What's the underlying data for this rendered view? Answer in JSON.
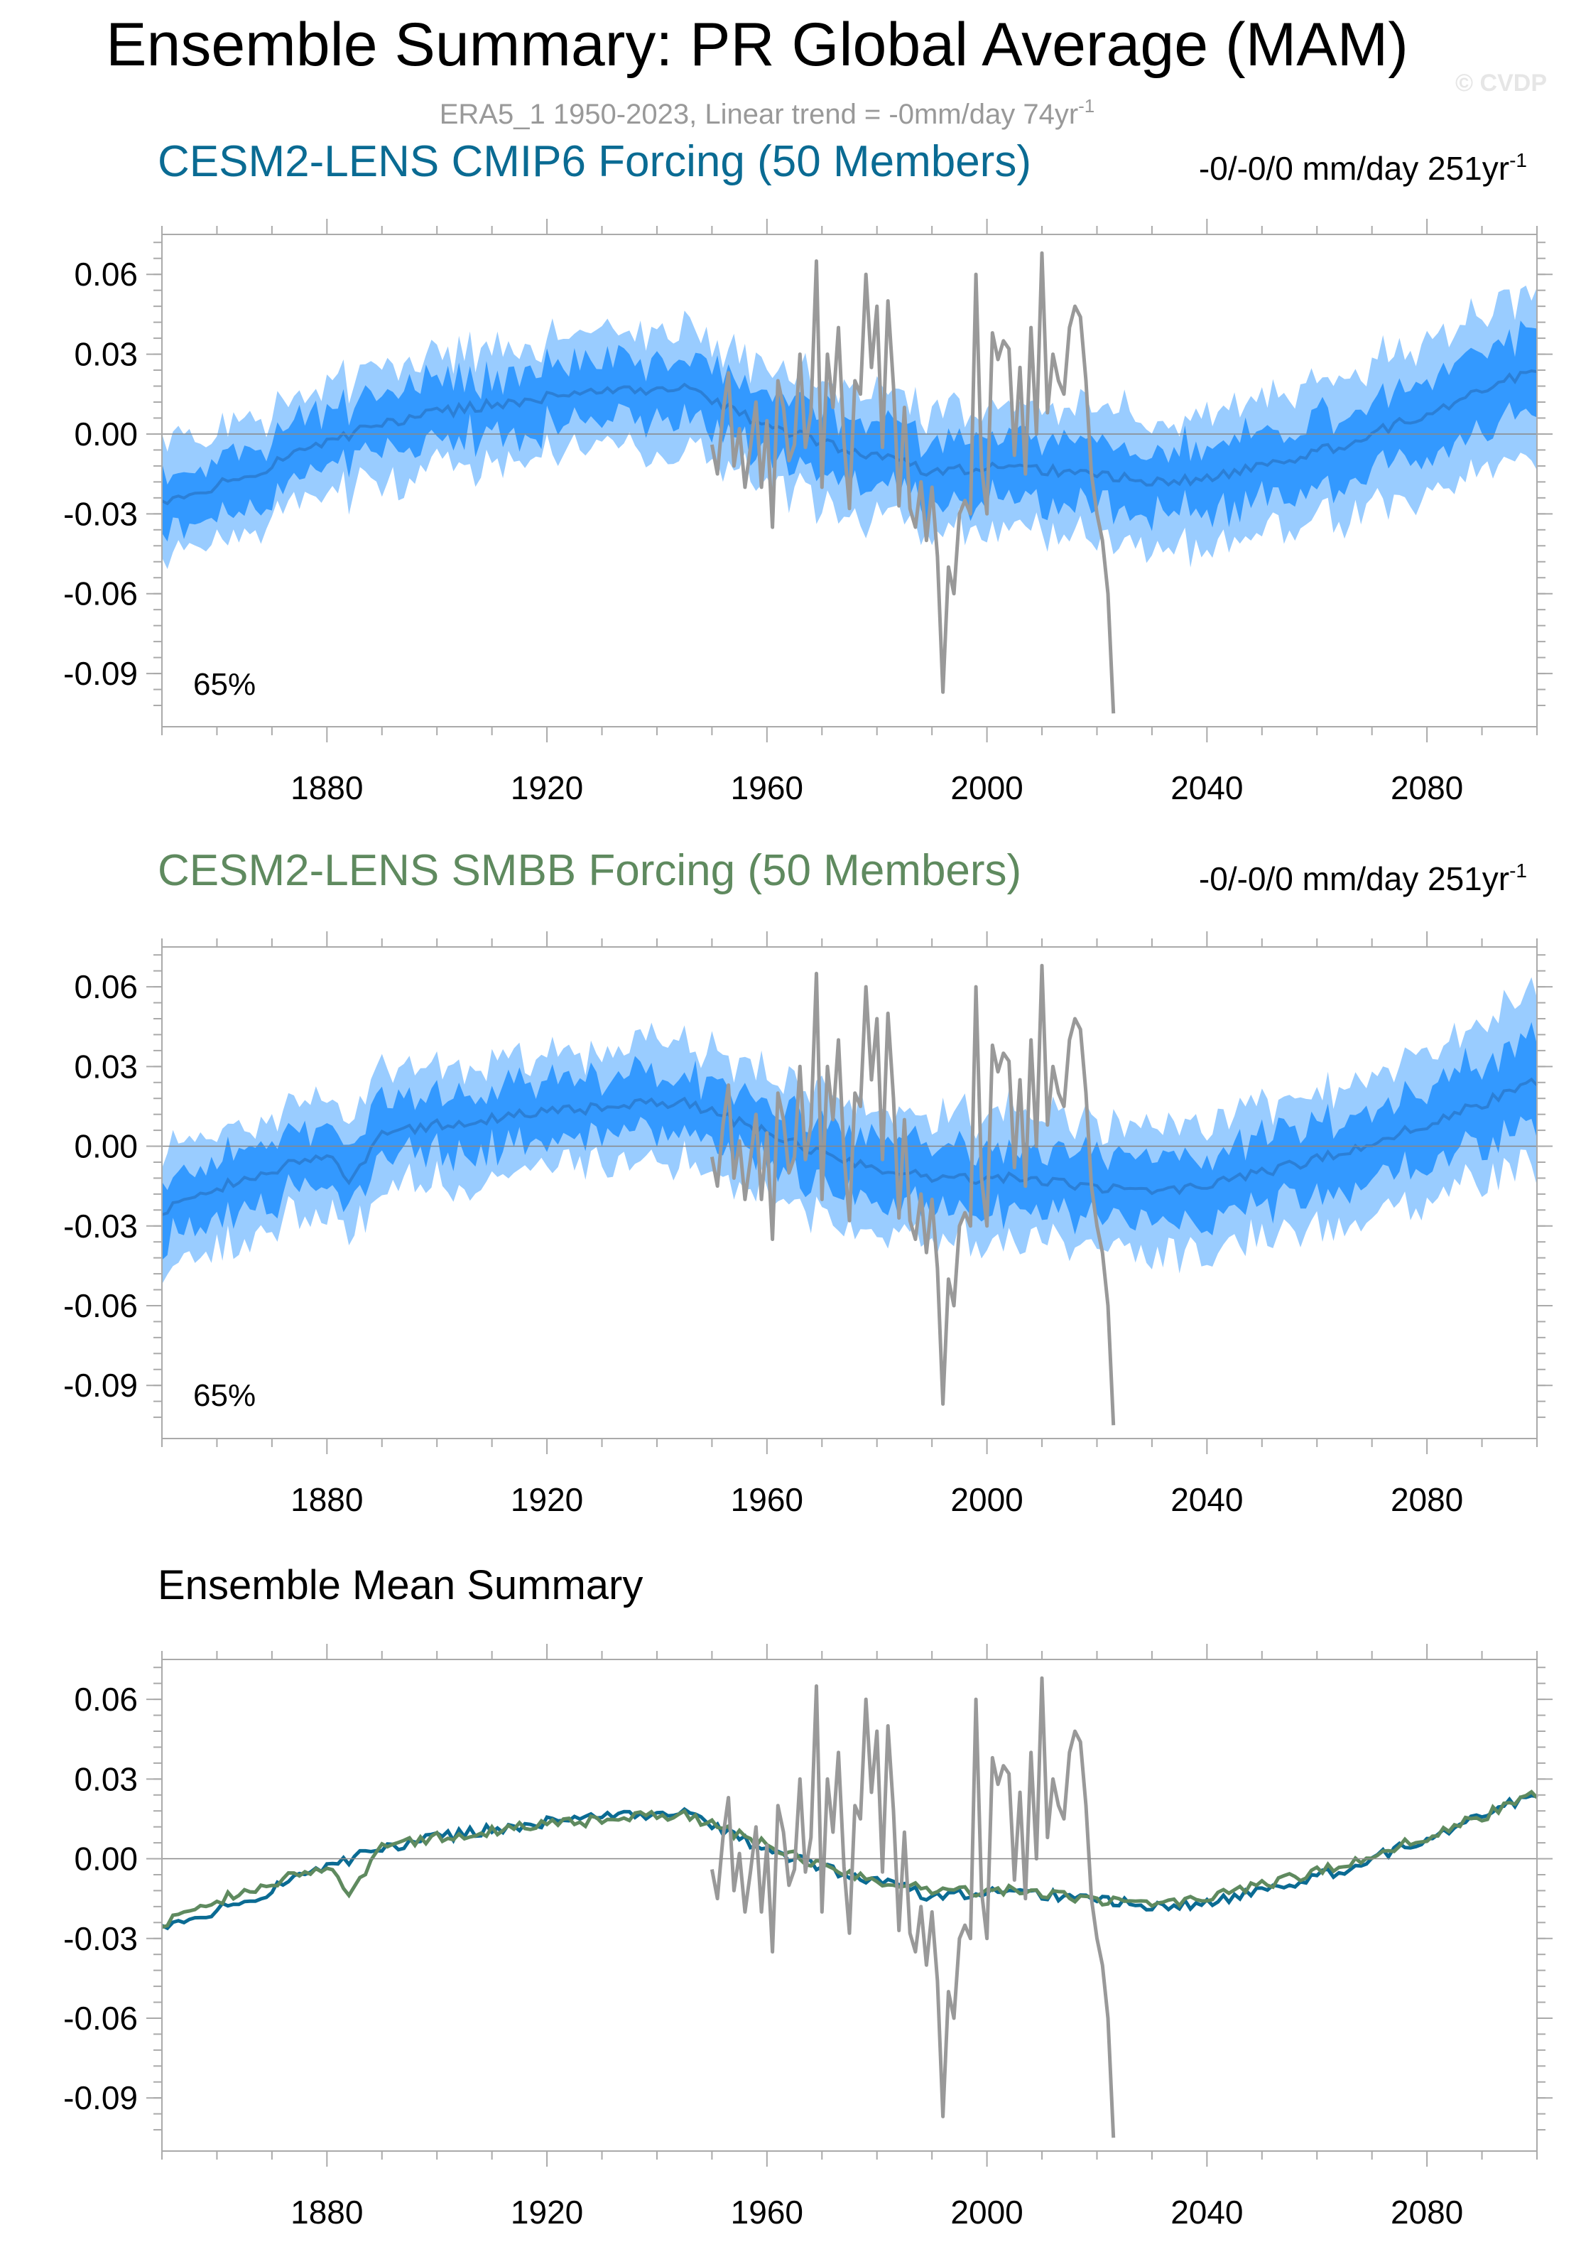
{
  "page": {
    "title": "Ensemble Summary: PR Global Average (MAM)",
    "observation_note": "ERA5_1 1950-2023, Linear trend = -0mm/day 74yr",
    "observation_note_sup": "-1",
    "watermark": "© CVDP"
  },
  "colors": {
    "background": "#ffffff",
    "range_outer": "#99ccff",
    "range_inner": "#3399ff",
    "ens_mean_line": "#2b7fd6",
    "observation": "#999999",
    "cmip6_title": "#0a6b93",
    "smbb_title": "#5f8a5f",
    "axis": "#aaaaaa",
    "zero_line": "#888888"
  },
  "panels": [
    {
      "id": "cmip6",
      "title": "CESM2-LENS CMIP6 Forcing (50 Members)",
      "trend_text": "-0/-0/0 mm/day 251yr",
      "trend_sup": "-1",
      "percent_label": "65%"
    },
    {
      "id": "smbb",
      "title": "CESM2-LENS SMBB Forcing (50 Members)",
      "trend_text": "-0/-0/0 mm/day 251yr",
      "trend_sup": "-1",
      "percent_label": "65%"
    },
    {
      "id": "mean",
      "title": "Ensemble Mean Summary"
    }
  ],
  "chart_data": [
    {
      "type": "area",
      "panel": "CESM2-LENS CMIP6 Forcing (50 Members)",
      "x_range": [
        1850,
        2100
      ],
      "ylim": [
        -0.11,
        0.075
      ],
      "x_ticks": [
        1880,
        1920,
        1960,
        2000,
        2040,
        2080
      ],
      "y_ticks": [
        0.06,
        0.03,
        0.0,
        -0.03,
        -0.06,
        -0.09
      ],
      "y_tick_labels": [
        "0.06",
        "0.03",
        "0.00",
        "-0.03",
        "-0.06",
        "-0.09"
      ],
      "grid": false,
      "zero_line": true,
      "ensemble_keypoints": {
        "years": [
          1850,
          1865,
          1880,
          1890,
          1900,
          1920,
          1945,
          1960,
          1975,
          1990,
          2005,
          2020,
          2035,
          2050,
          2065,
          2080,
          2100
        ],
        "mean": [
          -0.026,
          -0.016,
          -0.003,
          0.004,
          0.008,
          0.014,
          0.018,
          0.003,
          -0.006,
          -0.014,
          -0.012,
          -0.016,
          -0.018,
          -0.012,
          -0.004,
          0.008,
          0.025
        ],
        "inner_half_width": [
          0.011,
          0.011,
          0.011,
          0.011,
          0.011,
          0.011,
          0.011,
          0.011,
          0.012,
          0.012,
          0.012,
          0.012,
          0.012,
          0.012,
          0.013,
          0.014,
          0.015
        ],
        "outer_half_width": [
          0.021,
          0.021,
          0.021,
          0.022,
          0.022,
          0.022,
          0.022,
          0.022,
          0.023,
          0.023,
          0.024,
          0.024,
          0.024,
          0.025,
          0.026,
          0.028,
          0.031
        ]
      }
    },
    {
      "type": "area",
      "panel": "CESM2-LENS SMBB Forcing (50 Members)",
      "x_range": [
        1850,
        2100
      ],
      "ylim": [
        -0.11,
        0.075
      ],
      "x_ticks": [
        1880,
        1920,
        1960,
        2000,
        2040,
        2080
      ],
      "y_ticks": [
        0.06,
        0.03,
        0.0,
        -0.03,
        -0.06,
        -0.09
      ],
      "y_tick_labels": [
        "0.06",
        "0.03",
        "0.00",
        "-0.03",
        "-0.06",
        "-0.09"
      ],
      "grid": false,
      "zero_line": true,
      "ensemble_keypoints": {
        "years": [
          1850,
          1865,
          1880,
          1884,
          1890,
          1900,
          1920,
          1945,
          1960,
          1975,
          1990,
          2005,
          2020,
          2035,
          2050,
          2065,
          2080,
          2100
        ],
        "mean": [
          -0.024,
          -0.012,
          -0.003,
          -0.014,
          0.004,
          0.008,
          0.013,
          0.017,
          0.005,
          -0.006,
          -0.012,
          -0.012,
          -0.016,
          -0.016,
          -0.01,
          -0.002,
          0.008,
          0.024
        ],
        "inner_half_width": [
          0.011,
          0.011,
          0.011,
          0.011,
          0.011,
          0.011,
          0.011,
          0.011,
          0.011,
          0.012,
          0.012,
          0.012,
          0.012,
          0.012,
          0.012,
          0.013,
          0.014,
          0.016
        ],
        "outer_half_width": [
          0.021,
          0.021,
          0.021,
          0.021,
          0.022,
          0.022,
          0.022,
          0.022,
          0.022,
          0.023,
          0.023,
          0.024,
          0.024,
          0.024,
          0.025,
          0.026,
          0.028,
          0.032
        ]
      }
    },
    {
      "type": "line",
      "panel": "Ensemble Mean Summary",
      "x_range": [
        1850,
        2100
      ],
      "ylim": [
        -0.11,
        0.075
      ],
      "x_ticks": [
        1880,
        1920,
        1960,
        2000,
        2040,
        2080
      ],
      "y_ticks": [
        0.06,
        0.03,
        0.0,
        -0.03,
        -0.06,
        -0.09
      ],
      "y_tick_labels": [
        "0.06",
        "0.03",
        "0.00",
        "-0.03",
        "-0.06",
        "-0.09"
      ],
      "grid": false,
      "zero_line": true,
      "series_colors": [
        "#0a6b93",
        "#5f8a5f",
        "#999999"
      ]
    }
  ],
  "observations": {
    "years": [
      1950,
      1951,
      1952,
      1953,
      1954,
      1955,
      1956,
      1957,
      1958,
      1959,
      1960,
      1961,
      1962,
      1963,
      1964,
      1965,
      1966,
      1967,
      1968,
      1969,
      1970,
      1971,
      1972,
      1973,
      1974,
      1975,
      1976,
      1977,
      1978,
      1979,
      1980,
      1981,
      1982,
      1983,
      1984,
      1985,
      1986,
      1987,
      1988,
      1989,
      1990,
      1991,
      1992,
      1993,
      1994,
      1995,
      1996,
      1997,
      1998,
      1999,
      2000,
      2001,
      2002,
      2003,
      2004,
      2005,
      2006,
      2007,
      2008,
      2009,
      2010,
      2011,
      2012,
      2013,
      2014,
      2015,
      2016,
      2017,
      2018,
      2019,
      2020,
      2021,
      2022,
      2023
    ],
    "values": [
      -0.004,
      -0.015,
      0.008,
      0.023,
      -0.012,
      0.002,
      -0.02,
      -0.005,
      0.012,
      -0.02,
      0.005,
      -0.035,
      0.02,
      0.01,
      -0.01,
      -0.004,
      0.03,
      -0.005,
      0.008,
      0.065,
      -0.02,
      0.03,
      0.01,
      0.04,
      -0.003,
      -0.028,
      0.02,
      0.015,
      0.06,
      0.025,
      0.048,
      -0.005,
      0.05,
      0.018,
      -0.027,
      0.01,
      -0.028,
      -0.035,
      -0.018,
      -0.04,
      -0.02,
      -0.046,
      -0.097,
      -0.05,
      -0.06,
      -0.03,
      -0.025,
      -0.03,
      0.06,
      -0.012,
      -0.03,
      0.038,
      0.028,
      0.035,
      0.032,
      -0.008,
      0.025,
      -0.015,
      0.04,
      0.0,
      0.068,
      0.008,
      0.03,
      0.02,
      0.015,
      0.04,
      0.048,
      0.044,
      0.02,
      -0.015,
      -0.03,
      -0.04,
      -0.06,
      -0.105
    ]
  }
}
